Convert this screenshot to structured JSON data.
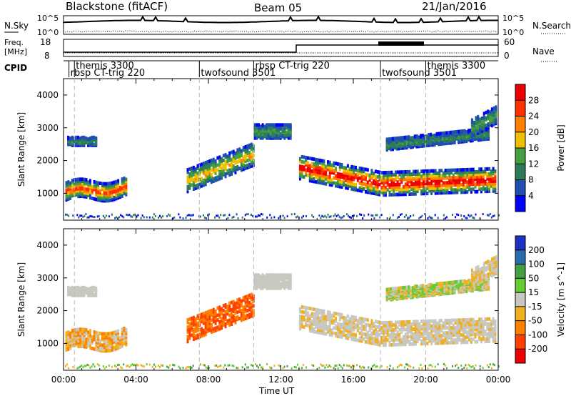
{
  "header": {
    "station": "Blackstone (fitACF)",
    "beam": "Beam 05",
    "date": "21/Jan/2016"
  },
  "summary": {
    "nsky_label": "N.Sky",
    "nsearch_label": "N.Search",
    "freq_label_1": "Freq.",
    "freq_label_2": "[MHz]",
    "nave_label": "Nave",
    "cpid_label": "CPID",
    "ytick_hi": "10^5",
    "ytick_lo": "10^0",
    "freq_ticks": [
      "18",
      "8"
    ],
    "nave_ticks": [
      "60",
      "0"
    ]
  },
  "cpid_segments": [
    {
      "label": "themis 3300",
      "start_hour": 0.6,
      "row": 0
    },
    {
      "label": "rbsp CT-trig 220",
      "start_hour": 0.3,
      "row": 1
    },
    {
      "label": "twofsound 3501",
      "start_hour": 7.5,
      "row": 1
    },
    {
      "label": "rbsp CT-trig 220",
      "start_hour": 10.5,
      "row": 0
    },
    {
      "label": "twofsound 3501",
      "start_hour": 17.5,
      "row": 1
    },
    {
      "label": "themis 3300",
      "start_hour": 20.0,
      "row": 0
    }
  ],
  "chart_data": [
    {
      "type": "heatmap",
      "ylabel": "Slant Range [km]",
      "xlabel": "Time UT",
      "x_ticks": [
        "00:00",
        "04:00",
        "08:00",
        "12:00",
        "16:00",
        "20:00",
        "00:00"
      ],
      "x_range_hours": [
        0,
        24
      ],
      "y_ticks": [
        "1000",
        "2000",
        "3000",
        "4000"
      ],
      "y_range_km": [
        180,
        4500
      ],
      "colorbar": {
        "label": "Power [dB]",
        "ticks": [
          "4",
          "8",
          "12",
          "16",
          "20",
          "24",
          "28"
        ],
        "colors": [
          "#0000ff",
          "#1f4fb0",
          "#2e7d5a",
          "#44a040",
          "#f0c000",
          "#ff8000",
          "#ff3000",
          "#ee0000"
        ]
      }
    },
    {
      "type": "heatmap",
      "ylabel": "Slant Range [km]",
      "xlabel": "Time UT",
      "x_ticks": [
        "00:00",
        "04:00",
        "08:00",
        "12:00",
        "16:00",
        "20:00",
        "00:00"
      ],
      "x_range_hours": [
        0,
        24
      ],
      "y_ticks": [
        "1000",
        "2000",
        "3000",
        "4000"
      ],
      "y_range_km": [
        180,
        4500
      ],
      "colorbar": {
        "label": "Velocity [m s^-1]",
        "ticks": [
          "200",
          "100",
          "50",
          "15",
          "-15",
          "-50",
          "-100",
          "-200"
        ],
        "colors": [
          "#2030c0",
          "#2a6cb0",
          "#44a040",
          "#66cc33",
          "#c8c8c0",
          "#f0b020",
          "#ff8000",
          "#ff4000",
          "#ee0000"
        ]
      }
    }
  ]
}
